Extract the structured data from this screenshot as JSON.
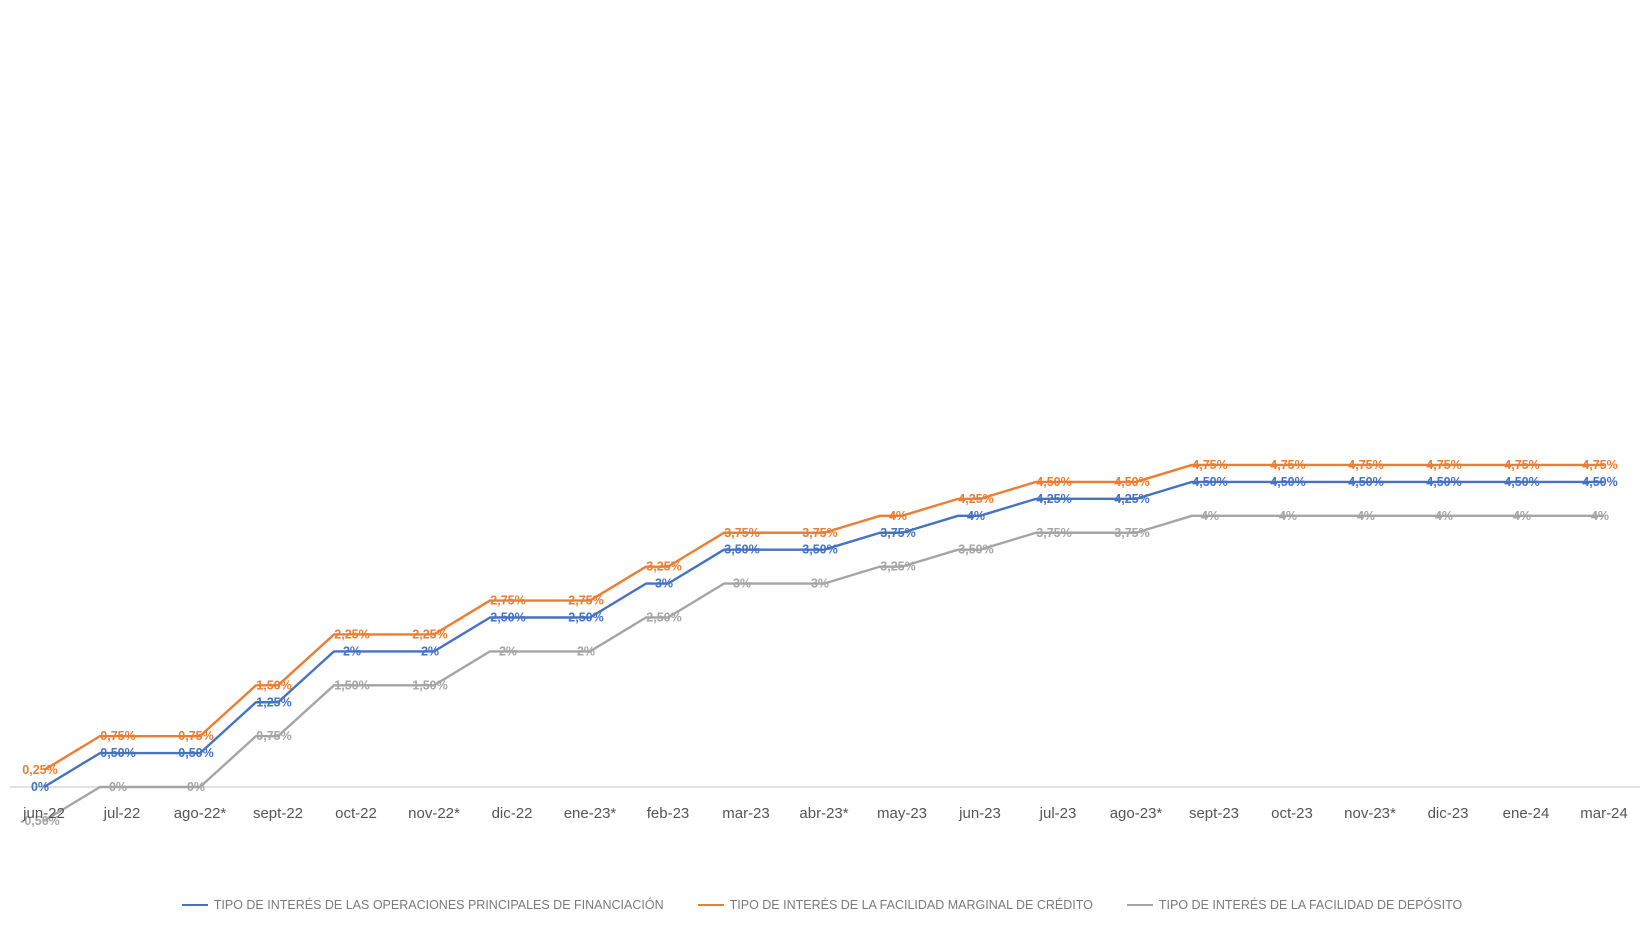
{
  "chart_data": {
    "type": "line",
    "line_shape": "step",
    "categories": [
      "jun-22",
      "jul-22",
      "ago-22*",
      "sept-22",
      "oct-22",
      "nov-22*",
      "dic-22",
      "ene-23*",
      "feb-23",
      "mar-23",
      "abr-23*",
      "may-23",
      "jun-23",
      "jul-23",
      "ago-23*",
      "sept-23",
      "oct-23",
      "nov-23*",
      "dic-23",
      "ene-24",
      "mar-24"
    ],
    "ylim": [
      -0.5,
      4.75
    ],
    "grid": false,
    "legend_position": "bottom",
    "series": [
      {
        "name": "TIPO DE INTERÉS DE LAS OPERACIONES PRINCIPALES DE FINANCIACIÓN",
        "color": "#4472c4",
        "values": [
          0,
          0.5,
          0.5,
          1.25,
          2,
          2,
          2.5,
          2.5,
          3,
          3.5,
          3.5,
          3.75,
          4,
          4.25,
          4.25,
          4.5,
          4.5,
          4.5,
          4.5,
          4.5,
          4.5
        ],
        "labels": [
          "0%",
          "0,50%",
          "0,50%",
          "1,25%",
          "2%",
          "2%",
          "2,50%",
          "2,50%",
          "3%",
          "3,50%",
          "3,50%",
          "3,75%",
          "4%",
          "4,25%",
          "4,25%",
          "4,50%",
          "4,50%",
          "4,50%",
          "4,50%",
          "4,50%",
          "4,50%"
        ]
      },
      {
        "name": "TIPO DE INTERÉS DE LA FACILIDAD MARGINAL DE CRÉDITO",
        "color": "#ed7d31",
        "values": [
          0.25,
          0.75,
          0.75,
          1.5,
          2.25,
          2.25,
          2.75,
          2.75,
          3.25,
          3.75,
          3.75,
          4,
          4.25,
          4.5,
          4.5,
          4.75,
          4.75,
          4.75,
          4.75,
          4.75,
          4.75
        ],
        "labels": [
          "0,25%",
          "0,75%",
          "0,75%",
          "1,50%",
          "2,25%",
          "2,25%",
          "2,75%",
          "2,75%",
          "3,25%",
          "3,75%",
          "3,75%",
          "4%",
          "4,25%",
          "4,50%",
          "4,50%",
          "4,75%",
          "4,75%",
          "4,75%",
          "4,75%",
          "4,75%",
          "4,75%"
        ]
      },
      {
        "name": "TIPO DE INTERÉS DE LA FACILIDAD DE DEPÓSITO",
        "color": "#a5a5a5",
        "values": [
          -0.5,
          0,
          0,
          0.75,
          1.5,
          1.5,
          2,
          2,
          2.5,
          3,
          3,
          3.25,
          3.5,
          3.75,
          3.75,
          4,
          4,
          4,
          4,
          4,
          4
        ],
        "labels": [
          "-0,50%",
          "0%",
          "0%",
          "0,75%",
          "1,50%",
          "1,50%",
          "2%",
          "2%",
          "2,50%",
          "3%",
          "3%",
          "3,25%",
          "3,50%",
          "3,75%",
          "3,75%",
          "4%",
          "4%",
          "4%",
          "4%",
          "4%",
          "4%"
        ]
      }
    ]
  }
}
